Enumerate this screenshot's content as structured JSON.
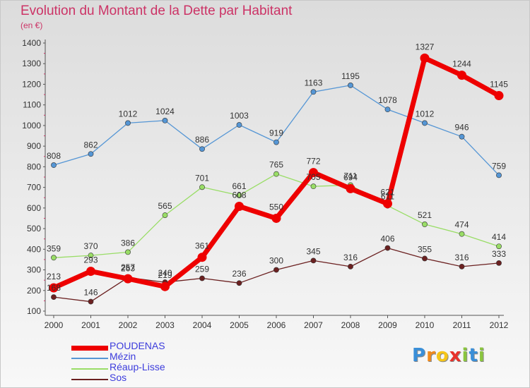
{
  "title": "Evolution du Montant de la Dette par Habitant",
  "subtitle": "(en €)",
  "brand": {
    "letters": [
      "P",
      "r",
      "o",
      "x",
      "i",
      "t",
      "i"
    ],
    "colors": [
      "#3a8fd8",
      "#f08a1c",
      "#f5c518",
      "#e8322b",
      "#8ac53e",
      "#3a8fd8",
      "#8ac53e"
    ]
  },
  "chart_data": {
    "type": "line",
    "x": [
      "2000",
      "2001",
      "2002",
      "2003",
      "2004",
      "2005",
      "2006",
      "2007",
      "2008",
      "2009",
      "2010",
      "2011",
      "2012"
    ],
    "ylim": [
      100,
      1400
    ],
    "yticks": [
      "100",
      "200",
      "300",
      "400",
      "500",
      "600",
      "700",
      "800",
      "900",
      "1000",
      "1100",
      "1200",
      "1300",
      "1400"
    ],
    "grid": false,
    "legend_position": "bottom-left",
    "series": [
      {
        "name": "POUDENAS",
        "color": "#ee0000",
        "values": [
          213,
          293,
          257,
          219,
          361,
          608,
          550,
          772,
          694,
          621,
          1327,
          1244,
          1145
        ],
        "labels": [
          "213",
          "293",
          "257",
          "219",
          "361",
          "608",
          "550",
          "772",
          "694",
          "621",
          "1327",
          "1244",
          "1145"
        ]
      },
      {
        "name": "Mézin",
        "color": "#5596d5",
        "values": [
          808,
          862,
          1012,
          1024,
          886,
          1003,
          919,
          1163,
          1195,
          1078,
          1012,
          946,
          759
        ],
        "labels": [
          "808",
          "862",
          "1012",
          "1024",
          "886",
          "1003",
          "919",
          "1163",
          "1195",
          "1078",
          "1012",
          "946",
          "759"
        ]
      },
      {
        "name": "Réaup-Lisse",
        "color": "#99dd66",
        "values": [
          359,
          370,
          386,
          565,
          701,
          661,
          765,
          705,
          711,
          611,
          521,
          474,
          414
        ],
        "labels": [
          "359",
          "370",
          "386",
          "565",
          "701",
          "661",
          "765",
          "705",
          "711",
          "611",
          "521",
          "474",
          "414"
        ]
      },
      {
        "name": "Sos",
        "color": "#6b2020",
        "values": [
          168,
          146,
          263,
          240,
          259,
          236,
          300,
          345,
          316,
          406,
          355,
          316,
          333
        ],
        "labels": [
          "168",
          "146",
          "263",
          "240",
          "259",
          "236",
          "300",
          "345",
          "316",
          "406",
          "355",
          "316",
          "333"
        ]
      }
    ]
  }
}
